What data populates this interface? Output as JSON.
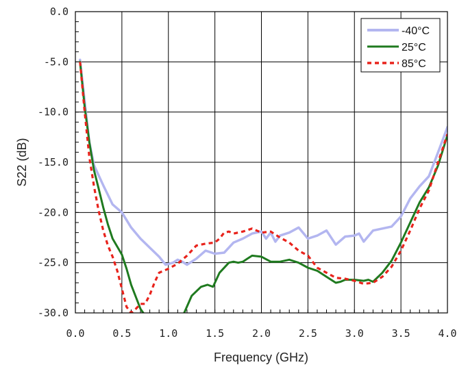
{
  "chart_data": {
    "type": "line",
    "xlabel": "Frequency (GHz)",
    "ylabel": "S22 (dB)",
    "xlim": [
      0.0,
      4.0
    ],
    "ylim": [
      -30.0,
      0.0
    ],
    "x_ticks": [
      "0.0",
      "0.5",
      "1.0",
      "1.5",
      "2.0",
      "2.5",
      "3.0",
      "3.5",
      "4.0"
    ],
    "y_ticks": [
      "0.0",
      "-5.0",
      "-10.0",
      "-15.0",
      "-20.0",
      "-25.0",
      "-30.0"
    ],
    "grid": true,
    "legend_position": "top-right",
    "series": [
      {
        "name": "-40°C",
        "color": "#b3b6f0",
        "style": "solid-thick",
        "points": [
          [
            0.05,
            -4.8
          ],
          [
            0.1,
            -9.0
          ],
          [
            0.15,
            -13.0
          ],
          [
            0.2,
            -15.3
          ],
          [
            0.3,
            -17.3
          ],
          [
            0.4,
            -19.2
          ],
          [
            0.5,
            -20.0
          ],
          [
            0.6,
            -21.5
          ],
          [
            0.7,
            -22.6
          ],
          [
            0.8,
            -23.5
          ],
          [
            0.9,
            -24.4
          ],
          [
            0.97,
            -25.2
          ],
          [
            1.05,
            -25.0
          ],
          [
            1.1,
            -24.7
          ],
          [
            1.15,
            -24.9
          ],
          [
            1.2,
            -25.2
          ],
          [
            1.3,
            -24.6
          ],
          [
            1.4,
            -23.8
          ],
          [
            1.5,
            -24.1
          ],
          [
            1.6,
            -24.0
          ],
          [
            1.7,
            -23.0
          ],
          [
            1.8,
            -22.6
          ],
          [
            1.9,
            -22.1
          ],
          [
            2.0,
            -21.9
          ],
          [
            2.05,
            -22.6
          ],
          [
            2.1,
            -22.0
          ],
          [
            2.15,
            -22.9
          ],
          [
            2.2,
            -22.3
          ],
          [
            2.3,
            -22.0
          ],
          [
            2.4,
            -21.5
          ],
          [
            2.5,
            -22.6
          ],
          [
            2.6,
            -22.3
          ],
          [
            2.7,
            -21.8
          ],
          [
            2.8,
            -23.2
          ],
          [
            2.9,
            -22.4
          ],
          [
            3.0,
            -22.3
          ],
          [
            3.05,
            -22.1
          ],
          [
            3.1,
            -22.9
          ],
          [
            3.2,
            -21.8
          ],
          [
            3.3,
            -21.6
          ],
          [
            3.4,
            -21.4
          ],
          [
            3.5,
            -20.4
          ],
          [
            3.6,
            -18.6
          ],
          [
            3.7,
            -17.4
          ],
          [
            3.8,
            -16.4
          ],
          [
            3.9,
            -14.0
          ],
          [
            4.0,
            -11.5
          ]
        ]
      },
      {
        "name": "25°C",
        "color": "#1f7a1f",
        "style": "solid",
        "points": [
          [
            0.05,
            -5.0
          ],
          [
            0.1,
            -9.5
          ],
          [
            0.15,
            -13.0
          ],
          [
            0.2,
            -15.8
          ],
          [
            0.25,
            -17.6
          ],
          [
            0.3,
            -19.5
          ],
          [
            0.35,
            -21.2
          ],
          [
            0.4,
            -22.6
          ],
          [
            0.5,
            -24.2
          ],
          [
            0.55,
            -25.6
          ],
          [
            0.6,
            -27.2
          ],
          [
            0.65,
            -28.4
          ],
          [
            0.7,
            -29.6
          ],
          [
            0.73,
            -30.0
          ]
        ]
      },
      {
        "name": "",
        "color": "#1f7a1f",
        "style": "solid",
        "points": [
          [
            1.17,
            -30.0
          ],
          [
            1.25,
            -28.3
          ],
          [
            1.35,
            -27.4
          ],
          [
            1.42,
            -27.2
          ],
          [
            1.48,
            -27.4
          ],
          [
            1.55,
            -26.0
          ],
          [
            1.65,
            -25.0
          ],
          [
            1.7,
            -24.9
          ],
          [
            1.75,
            -25.0
          ],
          [
            1.8,
            -24.9
          ],
          [
            1.85,
            -24.6
          ],
          [
            1.9,
            -24.3
          ],
          [
            2.0,
            -24.4
          ],
          [
            2.1,
            -24.9
          ],
          [
            2.2,
            -24.9
          ],
          [
            2.3,
            -24.7
          ],
          [
            2.4,
            -25.0
          ],
          [
            2.5,
            -25.5
          ],
          [
            2.6,
            -25.8
          ],
          [
            2.7,
            -26.4
          ],
          [
            2.8,
            -27.0
          ],
          [
            2.85,
            -26.9
          ],
          [
            2.9,
            -26.7
          ],
          [
            3.0,
            -26.7
          ],
          [
            3.1,
            -26.8
          ],
          [
            3.15,
            -26.7
          ],
          [
            3.2,
            -26.9
          ],
          [
            3.3,
            -26.0
          ],
          [
            3.4,
            -24.8
          ],
          [
            3.5,
            -23.0
          ],
          [
            3.6,
            -21.0
          ],
          [
            3.7,
            -19.0
          ],
          [
            3.8,
            -17.5
          ],
          [
            3.9,
            -15.3
          ],
          [
            4.0,
            -12.3
          ]
        ]
      },
      {
        "name": "85°C",
        "color": "#e8231c",
        "style": "dashed",
        "points": [
          [
            0.05,
            -5.0
          ],
          [
            0.1,
            -10.0
          ],
          [
            0.15,
            -14.5
          ],
          [
            0.2,
            -17.4
          ],
          [
            0.25,
            -19.8
          ],
          [
            0.3,
            -21.8
          ],
          [
            0.35,
            -23.3
          ],
          [
            0.4,
            -24.4
          ],
          [
            0.45,
            -25.8
          ],
          [
            0.5,
            -27.6
          ],
          [
            0.55,
            -29.4
          ],
          [
            0.6,
            -30.0
          ],
          [
            0.65,
            -29.6
          ],
          [
            0.7,
            -29.1
          ],
          [
            0.75,
            -29.1
          ],
          [
            0.8,
            -28.2
          ],
          [
            0.85,
            -27.0
          ],
          [
            0.9,
            -26.0
          ],
          [
            1.0,
            -25.6
          ],
          [
            1.1,
            -25.1
          ],
          [
            1.2,
            -24.3
          ],
          [
            1.3,
            -23.3
          ],
          [
            1.4,
            -23.1
          ],
          [
            1.5,
            -23.0
          ],
          [
            1.55,
            -22.6
          ],
          [
            1.6,
            -22.0
          ],
          [
            1.65,
            -21.9
          ],
          [
            1.7,
            -22.1
          ],
          [
            1.8,
            -21.9
          ],
          [
            1.9,
            -21.6
          ],
          [
            2.0,
            -22.0
          ],
          [
            2.1,
            -21.9
          ],
          [
            2.2,
            -22.5
          ],
          [
            2.3,
            -23.0
          ],
          [
            2.4,
            -23.8
          ],
          [
            2.5,
            -24.3
          ],
          [
            2.6,
            -25.5
          ],
          [
            2.7,
            -26.0
          ],
          [
            2.8,
            -26.5
          ],
          [
            2.9,
            -26.6
          ],
          [
            3.0,
            -26.8
          ],
          [
            3.1,
            -27.1
          ],
          [
            3.2,
            -27.0
          ],
          [
            3.3,
            -26.4
          ],
          [
            3.4,
            -25.4
          ],
          [
            3.5,
            -23.8
          ],
          [
            3.6,
            -21.8
          ],
          [
            3.7,
            -19.6
          ],
          [
            3.8,
            -17.8
          ],
          [
            3.9,
            -15.0
          ],
          [
            4.0,
            -12.2
          ]
        ]
      }
    ]
  }
}
